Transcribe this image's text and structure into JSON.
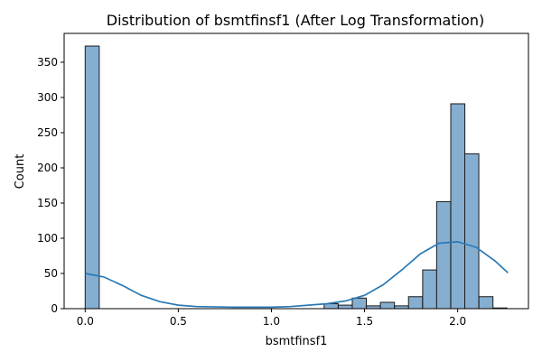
{
  "chart_data": {
    "type": "bar",
    "title": "Distribution of bsmtfinsf1 (After Log Transformation)",
    "xlabel": "bsmtfinsf1",
    "ylabel": "Count",
    "xlim": [
      -0.113,
      2.38
    ],
    "ylim": [
      0,
      391
    ],
    "xticks": [
      0.0,
      0.5,
      1.0,
      1.5,
      2.0
    ],
    "xtick_labels": [
      "0.0",
      "0.5",
      "1.0",
      "1.5",
      "2.0"
    ],
    "yticks": [
      0,
      50,
      100,
      150,
      200,
      250,
      300,
      350
    ],
    "ytick_labels": [
      "0",
      "50",
      "100",
      "150",
      "200",
      "250",
      "300",
      "350"
    ],
    "bin_width": 0.0755,
    "bins": [
      {
        "x0": 0.0,
        "count": 373
      },
      {
        "x0": 1.283,
        "count": 7
      },
      {
        "x0": 1.359,
        "count": 5
      },
      {
        "x0": 1.434,
        "count": 15
      },
      {
        "x0": 1.51,
        "count": 4
      },
      {
        "x0": 1.585,
        "count": 9
      },
      {
        "x0": 1.661,
        "count": 4
      },
      {
        "x0": 1.736,
        "count": 17
      },
      {
        "x0": 1.812,
        "count": 55
      },
      {
        "x0": 1.887,
        "count": 152
      },
      {
        "x0": 1.963,
        "count": 291
      },
      {
        "x0": 2.038,
        "count": 220
      },
      {
        "x0": 2.114,
        "count": 17
      },
      {
        "x0": 2.189,
        "count": 1
      }
    ],
    "kde": {
      "x": [
        0.0,
        0.1,
        0.2,
        0.3,
        0.4,
        0.5,
        0.6,
        0.8,
        1.0,
        1.1,
        1.2,
        1.3,
        1.4,
        1.5,
        1.6,
        1.7,
        1.8,
        1.9,
        2.0,
        2.1,
        2.2,
        2.27
      ],
      "y": [
        50,
        45,
        33,
        19,
        10,
        5,
        3,
        2,
        2,
        3,
        5,
        7,
        11,
        19,
        34,
        55,
        78,
        93,
        95,
        87,
        68,
        51
      ]
    },
    "colors": {
      "bar_fill": "#86aed1",
      "bar_edge": "#1a1a1a",
      "kde_line": "#2a79b5"
    },
    "grid": false,
    "legend": "none"
  }
}
